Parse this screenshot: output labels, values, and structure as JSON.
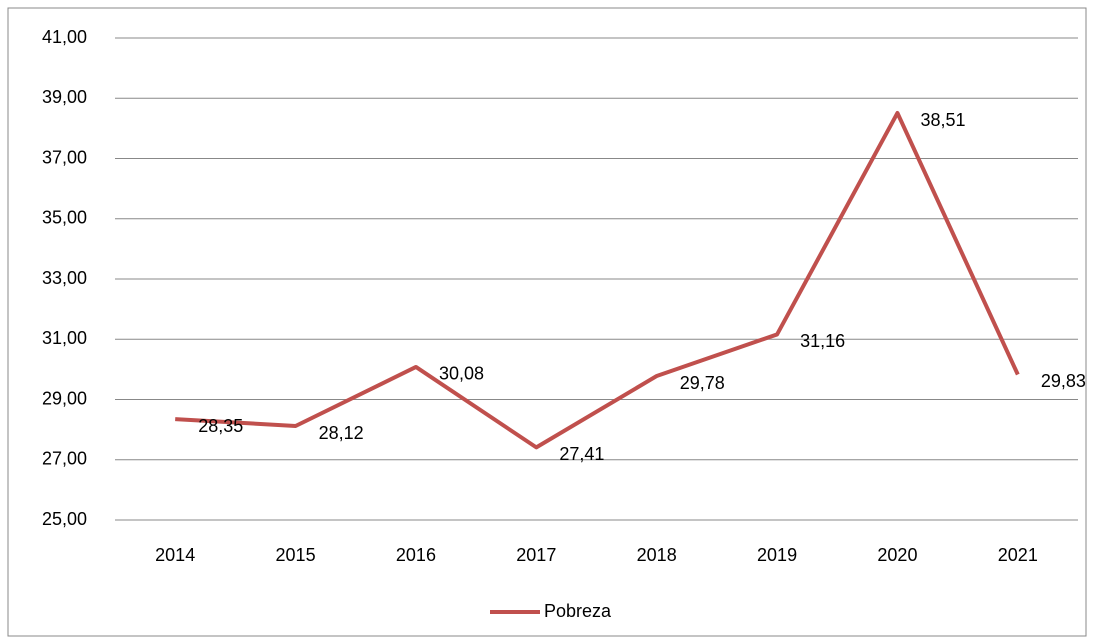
{
  "chart_data": {
    "type": "line",
    "categories": [
      "2014",
      "2015",
      "2016",
      "2017",
      "2018",
      "2019",
      "2020",
      "2021"
    ],
    "series": [
      {
        "name": "Pobreza",
        "color": "#c0504d",
        "values": [
          28.35,
          28.12,
          30.08,
          27.41,
          29.78,
          31.16,
          38.51,
          29.83
        ],
        "value_labels": [
          "28,35",
          "28,12",
          "30,08",
          "27,41",
          "29,78",
          "31,16",
          "38,51",
          "29,83"
        ]
      }
    ],
    "ylim": [
      25,
      41
    ],
    "yticks": [
      {
        "value": 25,
        "label": "25,00"
      },
      {
        "value": 27,
        "label": "27,00"
      },
      {
        "value": 29,
        "label": "29,00"
      },
      {
        "value": 31,
        "label": "31,00"
      },
      {
        "value": 33,
        "label": "33,00"
      },
      {
        "value": 35,
        "label": "35,00"
      },
      {
        "value": 37,
        "label": "37,00"
      },
      {
        "value": 39,
        "label": "39,00"
      },
      {
        "value": 41,
        "label": "41,00"
      }
    ],
    "grid": true,
    "legend": "bottom"
  }
}
